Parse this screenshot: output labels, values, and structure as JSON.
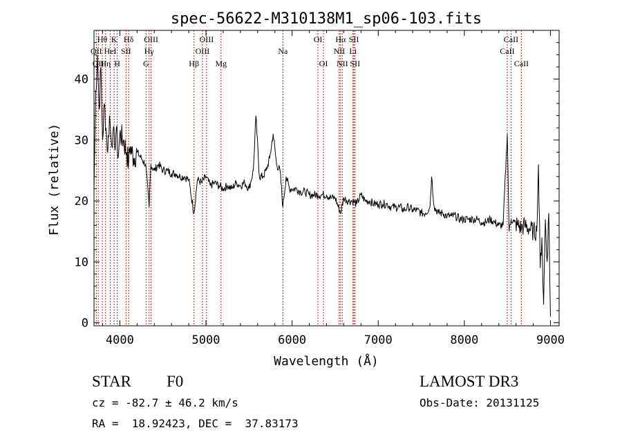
{
  "chart_data": {
    "type": "line",
    "title": "spec-56622-M310138M1_sp06-103.fits",
    "xlabel": "Wavelength (Å)",
    "ylabel": "Flux (relative)",
    "xlim": [
      3700,
      9100
    ],
    "ylim": [
      -0.5,
      48
    ],
    "xticks": [
      4000,
      5000,
      6000,
      7000,
      8000,
      9000
    ],
    "xtick_labels": [
      "4000",
      "5000",
      "6000",
      "7000",
      "8000",
      "9000"
    ],
    "yticks": [
      0,
      10,
      20,
      30,
      40
    ],
    "ytick_labels": [
      "0",
      "10",
      "20",
      "30",
      "40"
    ],
    "grid": false,
    "line_color": "#000000",
    "marker_color": "#b22222",
    "series": [
      {
        "x": [
          3700,
          3720,
          3740,
          3760,
          3780,
          3800,
          3820,
          3840,
          3860,
          3880,
          3900,
          3920,
          3940,
          3960,
          3980,
          4000,
          4040,
          4080,
          4102,
          4120,
          4160,
          4200,
          4250,
          4300,
          4340,
          4360,
          4400,
          4450,
          4500,
          4550,
          4600,
          4650,
          4700,
          4750,
          4800,
          4861,
          4900,
          4950,
          5000,
          5050,
          5100,
          5150,
          5200,
          5250,
          5300,
          5350,
          5400,
          5450,
          5500,
          5550,
          5580,
          5620,
          5660,
          5700,
          5740,
          5780,
          5820,
          5860,
          5893,
          5930,
          5970,
          6000,
          6050,
          6100,
          6150,
          6200,
          6250,
          6300,
          6350,
          6400,
          6450,
          6500,
          6563,
          6600,
          6650,
          6700,
          6750,
          6800,
          6850,
          6900,
          6950,
          7000,
          7050,
          7100,
          7150,
          7200,
          7250,
          7300,
          7350,
          7400,
          7450,
          7500,
          7550,
          7600,
          7620,
          7650,
          7700,
          7750,
          7800,
          7850,
          7900,
          7950,
          8000,
          8050,
          8100,
          8150,
          8200,
          8250,
          8300,
          8350,
          8400,
          8450,
          8498,
          8520,
          8542,
          8580,
          8620,
          8662,
          8700,
          8750,
          8800,
          8840,
          8860,
          8880,
          8900,
          8920,
          8940,
          8960,
          8980,
          9000
        ],
        "y": [
          22,
          38,
          44,
          35,
          42,
          30,
          36,
          32,
          28,
          34,
          30,
          31,
          29,
          32,
          27,
          31,
          30,
          28,
          26,
          29,
          27,
          28,
          27,
          26,
          19,
          26,
          25,
          26,
          25,
          25,
          24.5,
          24.5,
          24,
          24,
          23.5,
          18,
          23.5,
          23,
          24,
          22.5,
          23,
          22.5,
          22,
          22.5,
          22,
          23,
          22.5,
          23,
          22,
          25,
          34,
          24,
          24,
          25,
          27,
          31,
          26,
          25,
          19,
          24,
          22,
          22,
          22,
          21.5,
          21.5,
          21,
          21,
          21,
          21,
          21,
          20.5,
          20.5,
          18,
          20.5,
          20,
          20,
          19.5,
          21,
          20,
          20,
          19.5,
          19.5,
          19.5,
          19.5,
          19,
          19,
          19,
          18.5,
          19,
          18.5,
          18.5,
          18,
          18,
          19,
          24,
          19,
          18,
          18,
          17.5,
          17.5,
          17.5,
          17,
          17,
          17,
          17,
          17,
          16.5,
          16.5,
          17,
          16.5,
          16,
          16,
          31,
          15,
          17,
          16.5,
          16,
          15.5,
          16,
          15.5,
          15,
          15,
          26,
          9,
          14,
          3,
          17,
          10,
          18,
          1
        ]
      }
    ],
    "lines": [
      {
        "x": 3727,
        "label": "OII",
        "row": 2
      },
      {
        "x": 3750,
        "label": "OII",
        "row": 3
      },
      {
        "x": 3797,
        "label": "Hθ",
        "row": 1
      },
      {
        "x": 3835,
        "label": "Hη",
        "row": 3
      },
      {
        "x": 3889,
        "label": "HeI",
        "row": 2
      },
      {
        "x": 3934,
        "label": "K",
        "row": 1
      },
      {
        "x": 3969,
        "label": "H",
        "row": 3
      },
      {
        "x": 4072,
        "label": "SII",
        "row": 2
      },
      {
        "x": 4102,
        "label": "Hδ",
        "row": 1
      },
      {
        "x": 4304,
        "label": "G",
        "row": 3
      },
      {
        "x": 4340,
        "label": "Hγ",
        "row": 2
      },
      {
        "x": 4363,
        "label": "OIII",
        "row": 1
      },
      {
        "x": 4861,
        "label": "Hβ",
        "row": 3
      },
      {
        "x": 4959,
        "label": "OIII",
        "row": 2
      },
      {
        "x": 5007,
        "label": "OIII",
        "row": 1
      },
      {
        "x": 5175,
        "label": "Mg",
        "row": 3
      },
      {
        "x": 5893,
        "label": "Na",
        "row": 2
      },
      {
        "x": 6300,
        "label": "OI",
        "row": 1
      },
      {
        "x": 6364,
        "label": "OI",
        "row": 3
      },
      {
        "x": 6548,
        "label": "NII",
        "row": 2
      },
      {
        "x": 6563,
        "label": "Hα",
        "row": 1
      },
      {
        "x": 6583,
        "label": "NII",
        "row": 3
      },
      {
        "x": 6707,
        "label": "Li",
        "row": 2
      },
      {
        "x": 6717,
        "label": "SII",
        "row": 1
      },
      {
        "x": 6731,
        "label": "SII",
        "row": 3
      },
      {
        "x": 8498,
        "label": "CaII",
        "row": 2
      },
      {
        "x": 8542,
        "label": "CaII",
        "row": 1
      },
      {
        "x": 8662,
        "label": "CaII",
        "row": 3
      }
    ]
  },
  "info": {
    "object_class": "STAR",
    "subclass": "F0",
    "survey": "LAMOST DR3",
    "cz": "cz = -82.7 ± 46.2 km/s",
    "obs_date": "Obs-Date: 20131125",
    "coords": "RA =  18.92423, DEC =  37.83173"
  }
}
